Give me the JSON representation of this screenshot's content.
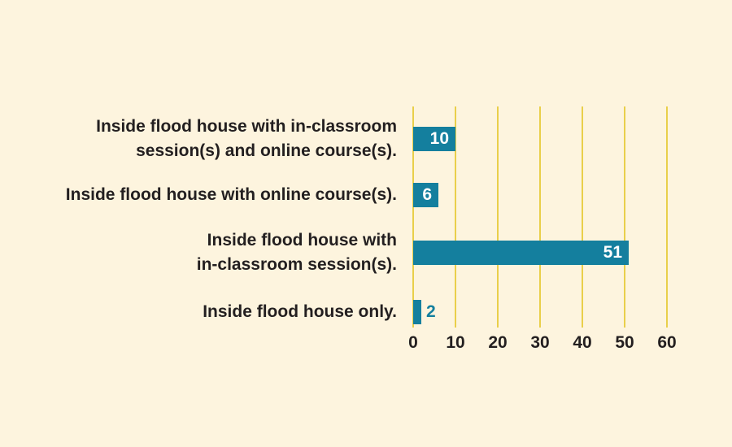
{
  "page": {
    "background": "#fdf4de"
  },
  "chart_data": {
    "type": "bar",
    "orientation": "horizontal",
    "title": "",
    "xlabel": "",
    "ylabel": "",
    "legend": "none",
    "grid": "vertical-gridlines-only",
    "xlim": [
      0,
      60
    ],
    "xticks": [
      "0",
      "10",
      "20",
      "30",
      "40",
      "50",
      "60"
    ],
    "xtick_values": [
      0,
      10,
      20,
      30,
      40,
      50,
      60
    ],
    "categories": [
      "Inside flood house with in-classroom session(s) and online course(s).",
      "Inside flood house with online course(s).",
      "Inside flood house with in-classroom session(s).",
      "Inside flood house only."
    ],
    "category_lines": [
      [
        "Inside flood house with in-classroom",
        "session(s) and online course(s)."
      ],
      [
        "Inside flood house with online course(s)."
      ],
      [
        "Inside flood house with",
        "in-classroom session(s)."
      ],
      [
        "Inside flood house only."
      ]
    ],
    "values": [
      10,
      6,
      51,
      2
    ],
    "value_labels": [
      "10",
      "6",
      "51",
      "2"
    ],
    "colors": {
      "bar": "#147f9e",
      "gridline": "#e9cf4a",
      "category_text": "#231f20",
      "tick_text": "#231f20",
      "value_inside_text": "#ffffff",
      "value_outside_text": "#147f9e",
      "background": "#fdf4de"
    }
  }
}
